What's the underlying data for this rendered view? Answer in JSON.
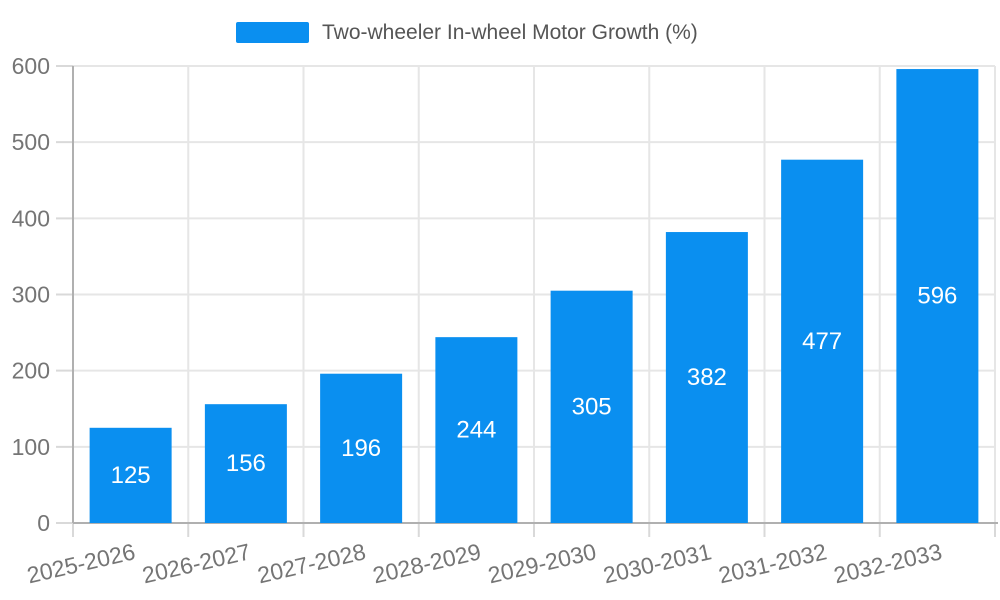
{
  "legend": {
    "label": "Two-wheeler In-wheel Motor Growth (%)"
  },
  "chart_data": {
    "type": "bar",
    "title": "Two-wheeler In-wheel Motor Growth (%)",
    "series_name": "Two-wheeler In-wheel Motor Growth (%)",
    "categories": [
      "2025-2026",
      "2026-2027",
      "2027-2028",
      "2028-2029",
      "2029-2030",
      "2030-2031",
      "2031-2032",
      "2032-2033"
    ],
    "values": [
      125,
      156,
      196,
      244,
      305,
      382,
      477,
      596
    ],
    "bar_labels": [
      "125",
      "156",
      "196",
      "244",
      "305",
      "382",
      "477",
      "596"
    ],
    "xlabel": "",
    "ylabel": "",
    "ylim": [
      0,
      600
    ],
    "yticks": [
      0,
      100,
      200,
      300,
      400,
      500,
      600
    ],
    "grid": true,
    "legend_position": "top-center",
    "bar_value_labels_visible": true,
    "x_label_rotation_deg": -13,
    "colors": {
      "bar": "#0a8ff0",
      "bar_label_text": "#ffffff",
      "axis_line": "#b0b0b0",
      "grid_line": "#e6e6e6",
      "tick_line": "#d9d9d9",
      "tick_label_text": "#757575",
      "legend_text": "#555555",
      "background": "#ffffff"
    }
  }
}
